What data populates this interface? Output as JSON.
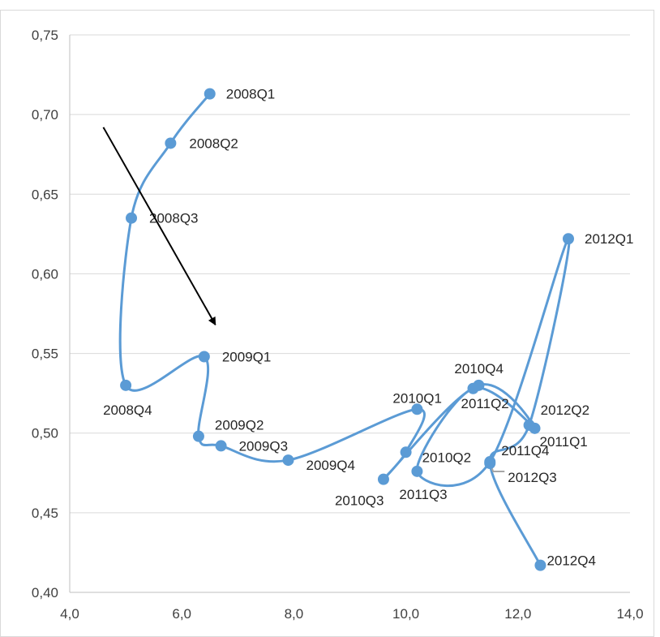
{
  "chart_data": {
    "type": "scatter",
    "title": "",
    "xlabel": "",
    "ylabel": "",
    "xlim": [
      4.0,
      14.0
    ],
    "ylim": [
      0.4,
      0.75
    ],
    "x_ticks": [
      "4,0",
      "6,0",
      "8,0",
      "10,0",
      "12,0",
      "14,0"
    ],
    "y_ticks": [
      "0,40",
      "0,45",
      "0,50",
      "0,55",
      "0,60",
      "0,65",
      "0,70",
      "0,75"
    ],
    "grid": true,
    "legend": "none",
    "series_color": "#5b9bd5",
    "connector_color": "#a6a6a6",
    "arrow_color": "#000000",
    "points": [
      {
        "label": "2008Q1",
        "x": 6.5,
        "y": 0.713
      },
      {
        "label": "2008Q2",
        "x": 5.8,
        "y": 0.682
      },
      {
        "label": "2008Q3",
        "x": 5.1,
        "y": 0.635
      },
      {
        "label": "2008Q4",
        "x": 5.0,
        "y": 0.53
      },
      {
        "label": "2009Q1",
        "x": 6.4,
        "y": 0.548
      },
      {
        "label": "2009Q2",
        "x": 6.3,
        "y": 0.498
      },
      {
        "label": "2009Q3",
        "x": 6.7,
        "y": 0.492
      },
      {
        "label": "2009Q4",
        "x": 7.9,
        "y": 0.483
      },
      {
        "label": "2010Q1",
        "x": 10.2,
        "y": 0.515
      },
      {
        "label": "2010Q2",
        "x": 10.0,
        "y": 0.488
      },
      {
        "label": "2010Q3",
        "x": 9.6,
        "y": 0.471
      },
      {
        "label": "2010Q4",
        "x": 11.3,
        "y": 0.53
      },
      {
        "label": "2011Q1",
        "x": 12.3,
        "y": 0.503
      },
      {
        "label": "2011Q2",
        "x": 11.2,
        "y": 0.528
      },
      {
        "label": "2011Q3",
        "x": 10.2,
        "y": 0.476
      },
      {
        "label": "2011Q4",
        "x": 11.5,
        "y": 0.482
      },
      {
        "label": "2012Q1",
        "x": 12.9,
        "y": 0.622
      },
      {
        "label": "2012Q2",
        "x": 12.2,
        "y": 0.505
      },
      {
        "label": "2012Q3",
        "x": 11.5,
        "y": 0.481
      },
      {
        "label": "2012Q4",
        "x": 12.4,
        "y": 0.417
      }
    ],
    "annotations": [
      {
        "type": "arrow",
        "from": {
          "x": 4.6,
          "y": 0.692
        },
        "to": {
          "x": 6.6,
          "y": 0.568
        }
      }
    ]
  }
}
